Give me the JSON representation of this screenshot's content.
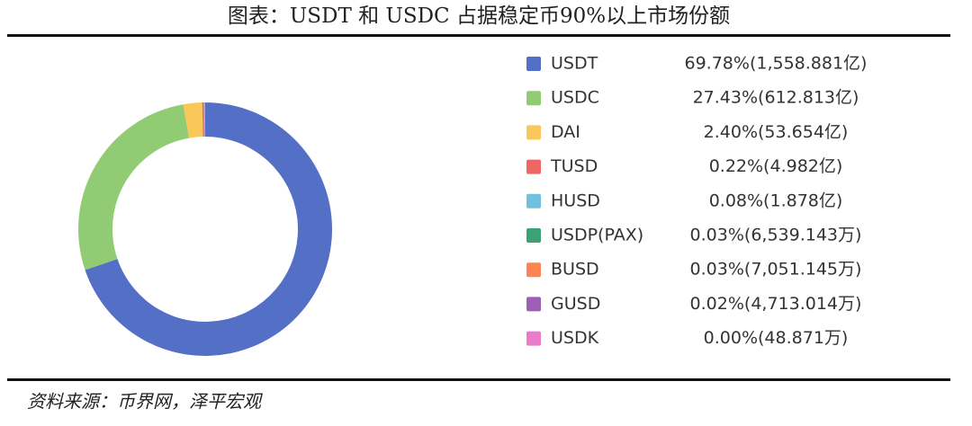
{
  "chart_data": {
    "type": "donut",
    "title": "图表：USDT 和 USDC 占据稳定币90%以上市场份额",
    "source": "资料来源：币界网，泽平宏观",
    "categories": [
      "USDT",
      "USDC",
      "DAI",
      "TUSD",
      "HUSD",
      "USDP(PAX)",
      "BUSD",
      "GUSD",
      "USDK"
    ],
    "values": [
      69.78,
      27.43,
      2.4,
      0.22,
      0.08,
      0.03,
      0.03,
      0.02,
      0.0
    ],
    "value_labels": [
      "69.78%(1,558.881亿)",
      "27.43%(612.813亿)",
      "2.40%(53.654亿)",
      "0.22%(4.982亿)",
      "0.08%(1.878亿)",
      "0.03%(6,539.143万)",
      "0.03%(7,051.145万)",
      "0.02%(4,713.014万)",
      "0.00%(48.871万)"
    ],
    "colors": [
      "#5470c6",
      "#91cc75",
      "#fac858",
      "#ee6666",
      "#73c0de",
      "#3ba272",
      "#fc8452",
      "#9a60b4",
      "#ea7ccc"
    ]
  }
}
